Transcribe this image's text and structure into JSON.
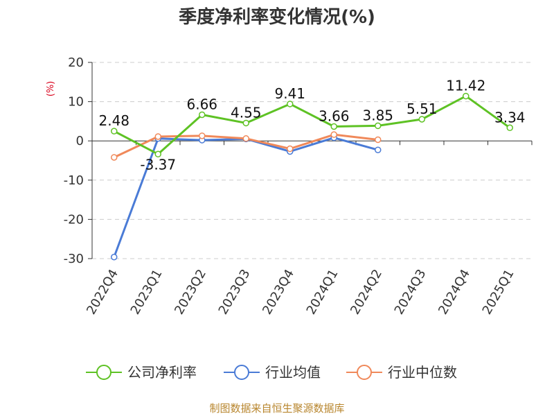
{
  "chart_data": {
    "type": "line",
    "title": "季度净利率变化情况(%)",
    "ylabel": "(%)",
    "xlabel": "",
    "categories": [
      "2022Q4",
      "2023Q1",
      "2023Q2",
      "2023Q3",
      "2023Q4",
      "2024Q1",
      "2024Q2",
      "2024Q3",
      "2024Q4",
      "2025Q1"
    ],
    "ylim": [
      -30,
      20
    ],
    "yticks": [
      20,
      10,
      0,
      -10,
      -20,
      -30
    ],
    "grid": true,
    "legend_position": "bottom",
    "series": [
      {
        "name": "公司净利率",
        "color": "#5ec224",
        "values": [
          2.48,
          -3.37,
          6.66,
          4.55,
          9.41,
          3.66,
          3.85,
          5.51,
          11.42,
          3.34
        ],
        "labels": [
          "2.48",
          "-3.37",
          "6.66",
          "4.55",
          "9.41",
          "3.66",
          "3.85",
          "5.51",
          "11.42",
          "3.34"
        ]
      },
      {
        "name": "行业均值",
        "color": "#4a7bd6",
        "values": [
          -29.6,
          0.6,
          0.2,
          0.5,
          -2.7,
          0.8,
          -2.3,
          null,
          null,
          null
        ]
      },
      {
        "name": "行业中位数",
        "color": "#f0895a",
        "values": [
          -4.2,
          1.1,
          1.3,
          0.6,
          -2.0,
          1.6,
          0.3,
          null,
          null,
          null
        ]
      }
    ],
    "source": "制图数据来自恒生聚源数据库"
  }
}
